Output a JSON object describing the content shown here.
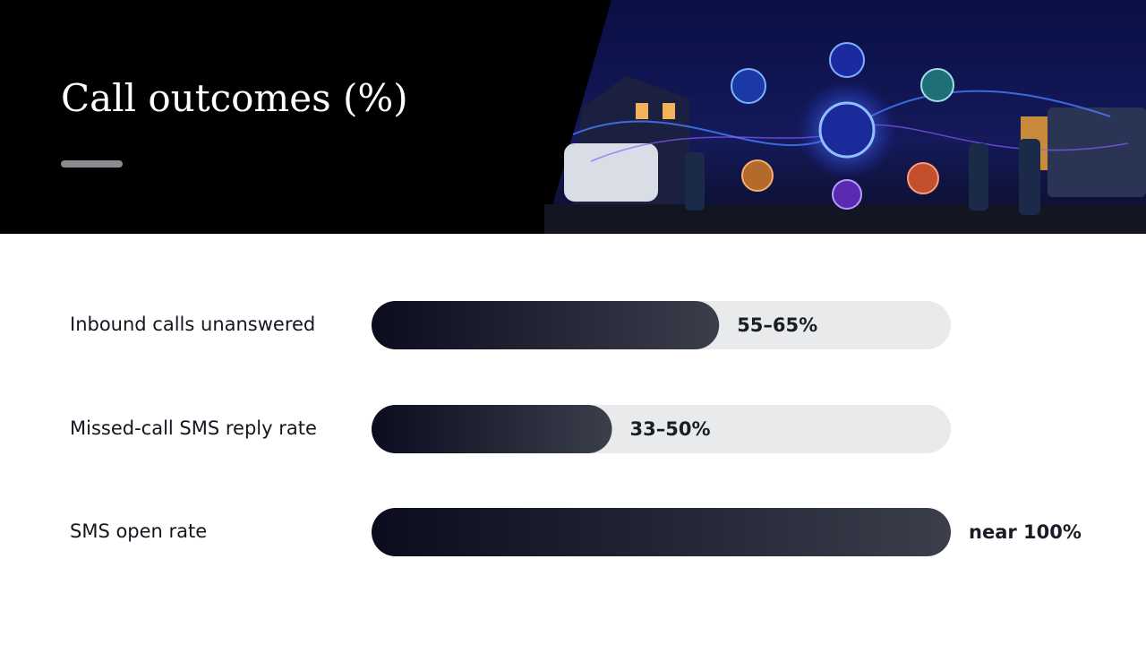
{
  "chart_data": {
    "type": "bar",
    "orientation": "horizontal",
    "title": "Call outcomes (%)",
    "categories": [
      "Inbound calls unanswered",
      "Missed-call SMS reply rate",
      "SMS open rate"
    ],
    "values": [
      60,
      41.5,
      100
    ],
    "value_labels": [
      "55–65%",
      "33–50%",
      "near 100%"
    ],
    "xlim": [
      0,
      100
    ],
    "color": [
      "#0b0c1e",
      "#3b3e4b"
    ],
    "track_color": "#e9eaec",
    "grid": false
  }
}
